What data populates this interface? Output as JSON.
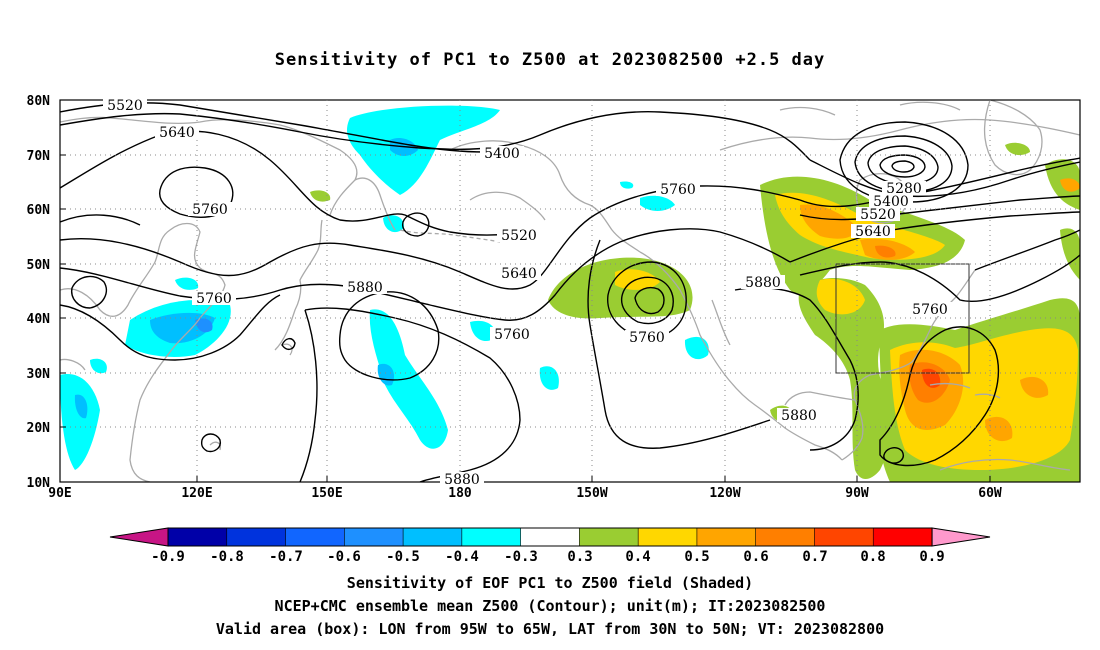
{
  "title": "Sensitivity of PC1 to Z500 at 2023082500 +2.5 day",
  "lat_labels": [
    "80N",
    "70N",
    "60N",
    "50N",
    "40N",
    "30N",
    "20N",
    "10N"
  ],
  "lon_labels": [
    "90E",
    "120E",
    "150E",
    "180",
    "150W",
    "120W",
    "90W",
    "60W"
  ],
  "contours": [
    {
      "label": "5520",
      "line": "l_5520_a"
    },
    {
      "label": "5640",
      "line": "l_5640_a"
    },
    {
      "label": "5760",
      "line": "l_5760_a"
    },
    {
      "label": "5400",
      "line": "l_5400"
    },
    {
      "label": "5760",
      "line": "l_5760_b"
    },
    {
      "label": "5520",
      "line": "l_5520_b"
    },
    {
      "label": "5640",
      "line": "l_5640_b"
    },
    {
      "label": "5760",
      "line": "l_5760_c"
    },
    {
      "label": "5880",
      "line": "l_5880_a"
    },
    {
      "label": "5760",
      "line": "l_5760_d"
    },
    {
      "label": "5760",
      "line": "l_5760_e"
    },
    {
      "label": "5880",
      "line": "l_5880_b"
    },
    {
      "label": "5880",
      "line": "l_5880_c"
    },
    {
      "label": "5880",
      "line": "l_5880_d"
    },
    {
      "label": "5280",
      "line": "l_5280"
    },
    {
      "label": "5400",
      "line": "l_5400_b"
    },
    {
      "label": "5520",
      "line": "l_5520_c"
    },
    {
      "label": "5640",
      "line": "l_5640_c"
    },
    {
      "label": "5760",
      "line": "l_5760_f"
    }
  ],
  "colorbar": {
    "labels": [
      "-0.9",
      "-0.8",
      "-0.7",
      "-0.6",
      "-0.5",
      "-0.4",
      "-0.3",
      "0.3",
      "0.4",
      "0.5",
      "0.6",
      "0.7",
      "0.8",
      "0.9"
    ],
    "colors": [
      "#0000a8",
      "#0033dd",
      "#1166ff",
      "#1e90ff",
      "#00bfff",
      "#00ffff",
      "#ffffff",
      "#9acd32",
      "#ffd700",
      "#ffa500",
      "#ff7f00",
      "#ff4500",
      "#ff0000"
    ],
    "low_color": "#c71585",
    "high_color": "#ff99cc"
  },
  "footer": [
    "Sensitivity of EOF PC1 to Z500 field (Shaded)",
    "NCEP+CMC ensemble mean Z500 (Contour); unit(m); IT:2023082500",
    "Valid area (box): LON from 95W to 65W, LAT from 30N to 50N; VT: 2023082800"
  ]
}
